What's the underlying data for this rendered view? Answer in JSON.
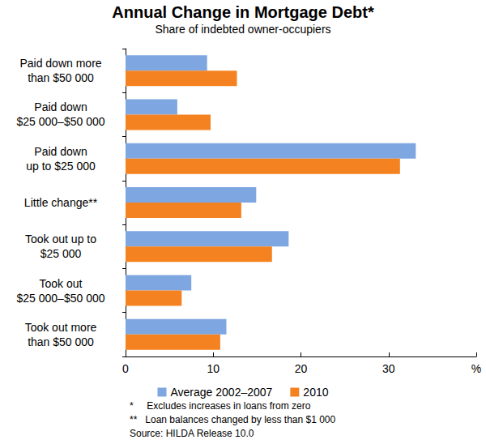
{
  "chart_data": {
    "type": "bar",
    "orientation": "horizontal",
    "title": "Annual Change in Mortgage Debt*",
    "subtitle": "Share of indebted owner-occupiers",
    "categories": [
      "Paid down more\nthan $50 000",
      "Paid down\n$25 000–$50 000",
      "Paid down\nup to $25 000",
      "Little change**",
      "Took out up to\n$25 000",
      "Took out\n$25 000–$50 000",
      "Took out more\nthan $50 000"
    ],
    "series": [
      {
        "name": "Average 2002–2007",
        "color": "#7ea6e0",
        "values": [
          9.3,
          5.9,
          33.1,
          14.9,
          18.6,
          7.5,
          11.5
        ]
      },
      {
        "name": "2010",
        "color": "#f58220",
        "values": [
          12.7,
          9.7,
          31.3,
          13.2,
          16.7,
          6.4,
          10.8
        ]
      }
    ],
    "xlim": [
      0,
      40
    ],
    "xticks": [
      0,
      10,
      20,
      30,
      {
        "value": 40,
        "label": "%"
      }
    ],
    "grid": false,
    "legend": "bottom",
    "data_labels": false,
    "notes": [
      "*     Excludes increases in loans from zero",
      "**   Loan balances changed by less than $1 000",
      "Source: HILDA Release 10.0"
    ]
  }
}
